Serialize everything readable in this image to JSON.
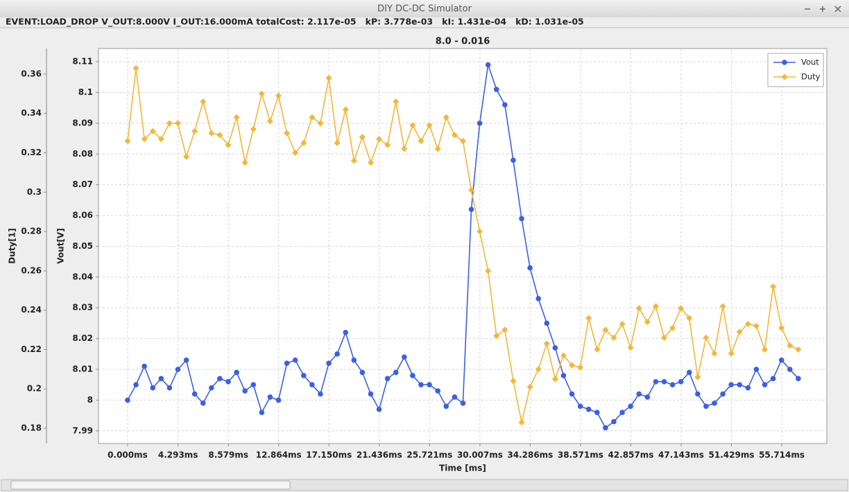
{
  "window": {
    "title": "DIY DC-DC Simulator",
    "status": "EVENT:LOAD_DROP V_OUT:8.000V I_OUT:16.000mA totalCost: 2.117e-05   kP: 3.778e-03   kI: 1.431e-04   kD: 1.031e-05"
  },
  "chart_data": {
    "type": "line",
    "title": "8.0 - 0.016",
    "xlabel": "Time [ms]",
    "ylabel": "Vout[V]",
    "y2label": "Duty[1]",
    "x": [
      0,
      0.714,
      1.428,
      2.142,
      2.856,
      3.57,
      4.284,
      4.998,
      5.712,
      6.426,
      7.14,
      7.854,
      8.568,
      9.282,
      9.996,
      10.71,
      11.424,
      12.138,
      12.852,
      13.566,
      14.28,
      14.994,
      15.708,
      16.422,
      17.136,
      17.85,
      18.564,
      19.278,
      19.992,
      20.706,
      21.42,
      22.134,
      22.848,
      23.562,
      24.276,
      24.99,
      25.704,
      26.418,
      27.132,
      27.846,
      28.56,
      29.274,
      29.988,
      30.702,
      31.416,
      32.13,
      32.844,
      33.558,
      34.272,
      34.986,
      35.7,
      36.414,
      37.128,
      37.842,
      38.556,
      39.27,
      39.984,
      40.698,
      41.412,
      42.126,
      42.84,
      43.554,
      44.268,
      44.982,
      45.696,
      46.41,
      47.124,
      47.838,
      48.552,
      49.266,
      49.98,
      50.694,
      51.408,
      52.122,
      52.836,
      53.55,
      54.264,
      54.978,
      55.692,
      56.406,
      57.12
    ],
    "series": [
      {
        "name": "Vout",
        "color": "#3c5fe6",
        "marker": "circle",
        "values": [
          8.0,
          8.005,
          8.011,
          8.004,
          8.007,
          8.004,
          8.01,
          8.013,
          8.002,
          7.999,
          8.004,
          8.007,
          8.006,
          8.009,
          8.003,
          8.005,
          7.996,
          8.001,
          8.0,
          8.012,
          8.013,
          8.008,
          8.005,
          8.002,
          8.012,
          8.015,
          8.022,
          8.013,
          8.009,
          8.002,
          7.997,
          8.007,
          8.009,
          8.014,
          8.008,
          8.005,
          8.005,
          8.003,
          7.998,
          8.001,
          7.999,
          8.062,
          8.09,
          8.109,
          8.101,
          8.096,
          8.078,
          8.059,
          8.043,
          8.033,
          8.025,
          8.017,
          8.008,
          8.002,
          7.998,
          7.997,
          7.996,
          7.991,
          7.993,
          7.996,
          7.998,
          8.002,
          8.001,
          8.006,
          8.006,
          8.005,
          8.006,
          8.009,
          8.002,
          7.998,
          7.999,
          8.002,
          8.005,
          8.005,
          8.004,
          8.01,
          8.005,
          8.007,
          8.013,
          8.01,
          8.007
        ]
      },
      {
        "name": "Duty",
        "color": "#f5b637",
        "marker": "diamond",
        "axis": "y2",
        "values": [
          0.326,
          0.363,
          0.327,
          0.331,
          0.327,
          0.335,
          0.335,
          0.318,
          0.331,
          0.346,
          0.33,
          0.329,
          0.324,
          0.338,
          0.315,
          0.332,
          0.35,
          0.336,
          0.349,
          0.33,
          0.32,
          0.325,
          0.338,
          0.335,
          0.358,
          0.325,
          0.342,
          0.316,
          0.328,
          0.315,
          0.327,
          0.324,
          0.346,
          0.322,
          0.334,
          0.326,
          0.334,
          0.322,
          0.338,
          0.329,
          0.326,
          0.301,
          0.28,
          0.26,
          0.227,
          0.23,
          0.204,
          0.183,
          0.201,
          0.21,
          0.223,
          0.205,
          0.217,
          0.212,
          0.211,
          0.236,
          0.22,
          0.23,
          0.226,
          0.233,
          0.221,
          0.241,
          0.234,
          0.242,
          0.226,
          0.231,
          0.241,
          0.236,
          0.206,
          0.226,
          0.218,
          0.242,
          0.218,
          0.229,
          0.233,
          0.232,
          0.22,
          0.252,
          0.231,
          0.222,
          0.22
        ]
      }
    ],
    "xlim": [
      -2.48,
      59.55
    ],
    "xticks": [
      {
        "value": 0,
        "label": "0.000ms"
      },
      {
        "value": 4.293,
        "label": "4.293ms"
      },
      {
        "value": 8.579,
        "label": "8.579ms"
      },
      {
        "value": 12.864,
        "label": "12.864ms"
      },
      {
        "value": 17.15,
        "label": "17.150ms"
      },
      {
        "value": 21.436,
        "label": "21.436ms"
      },
      {
        "value": 25.721,
        "label": "25.721ms"
      },
      {
        "value": 30.007,
        "label": "30.007ms"
      },
      {
        "value": 34.286,
        "label": "34.286ms"
      },
      {
        "value": 38.571,
        "label": "38.571ms"
      },
      {
        "value": 42.857,
        "label": "42.857ms"
      },
      {
        "value": 47.143,
        "label": "47.143ms"
      },
      {
        "value": 51.429,
        "label": "51.429ms"
      },
      {
        "value": 55.714,
        "label": "55.714ms"
      }
    ],
    "ylim": [
      7.9859,
      8.1143
    ],
    "yticks": [
      7.99,
      8,
      8.01,
      8.02,
      8.03,
      8.04,
      8.05,
      8.06,
      8.07,
      8.08,
      8.09,
      8.1,
      8.11
    ],
    "y2lim": [
      0.17225,
      0.373
    ],
    "y2ticks": [
      0.18,
      0.2,
      0.22,
      0.24,
      0.26,
      0.28,
      0.3,
      0.32,
      0.34,
      0.36
    ],
    "grid": true,
    "legend": "upper right"
  }
}
